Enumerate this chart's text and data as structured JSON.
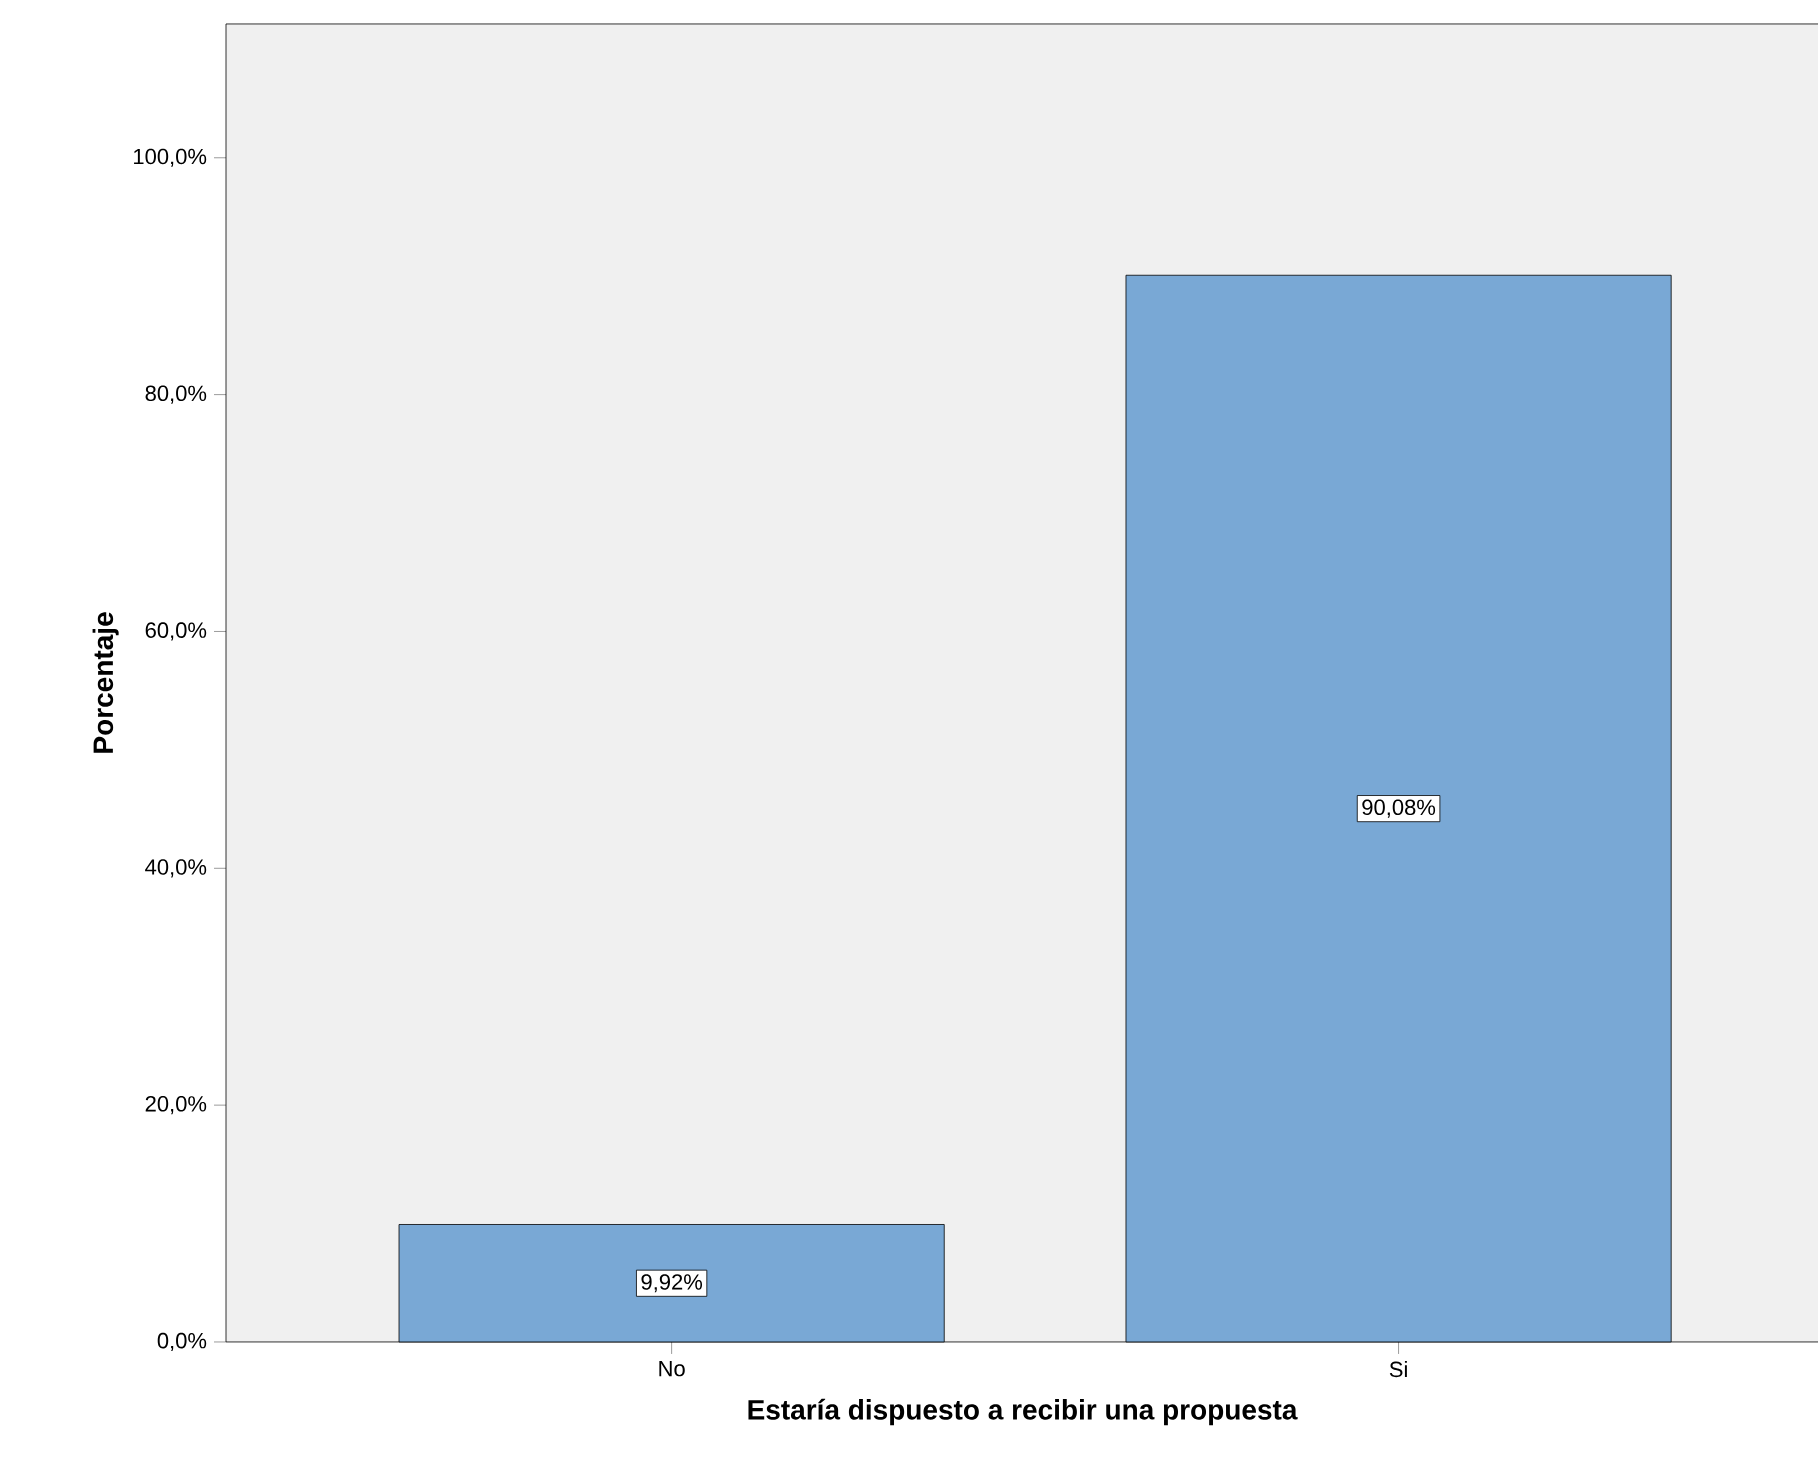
{
  "chart_data": {
    "type": "bar",
    "xlabel": "Estaría dispuesto a recibir una propuesta",
    "ylabel": "Porcentaje",
    "categories": [
      "No",
      "Si"
    ],
    "values": [
      9.92,
      90.08
    ],
    "value_labels": [
      "9,92%",
      "90,08%"
    ],
    "color": "#79a8d5",
    "ylim": [
      0,
      111.3
    ],
    "yticks": [
      {
        "value": 0,
        "label": "0,0%"
      },
      {
        "value": 20,
        "label": "20,0%"
      },
      {
        "value": 40,
        "label": "40,0%"
      },
      {
        "value": 60,
        "label": "60,0%"
      },
      {
        "value": 80,
        "label": "80,0%"
      },
      {
        "value": 100,
        "label": "100,0%"
      }
    ],
    "grid": false
  }
}
